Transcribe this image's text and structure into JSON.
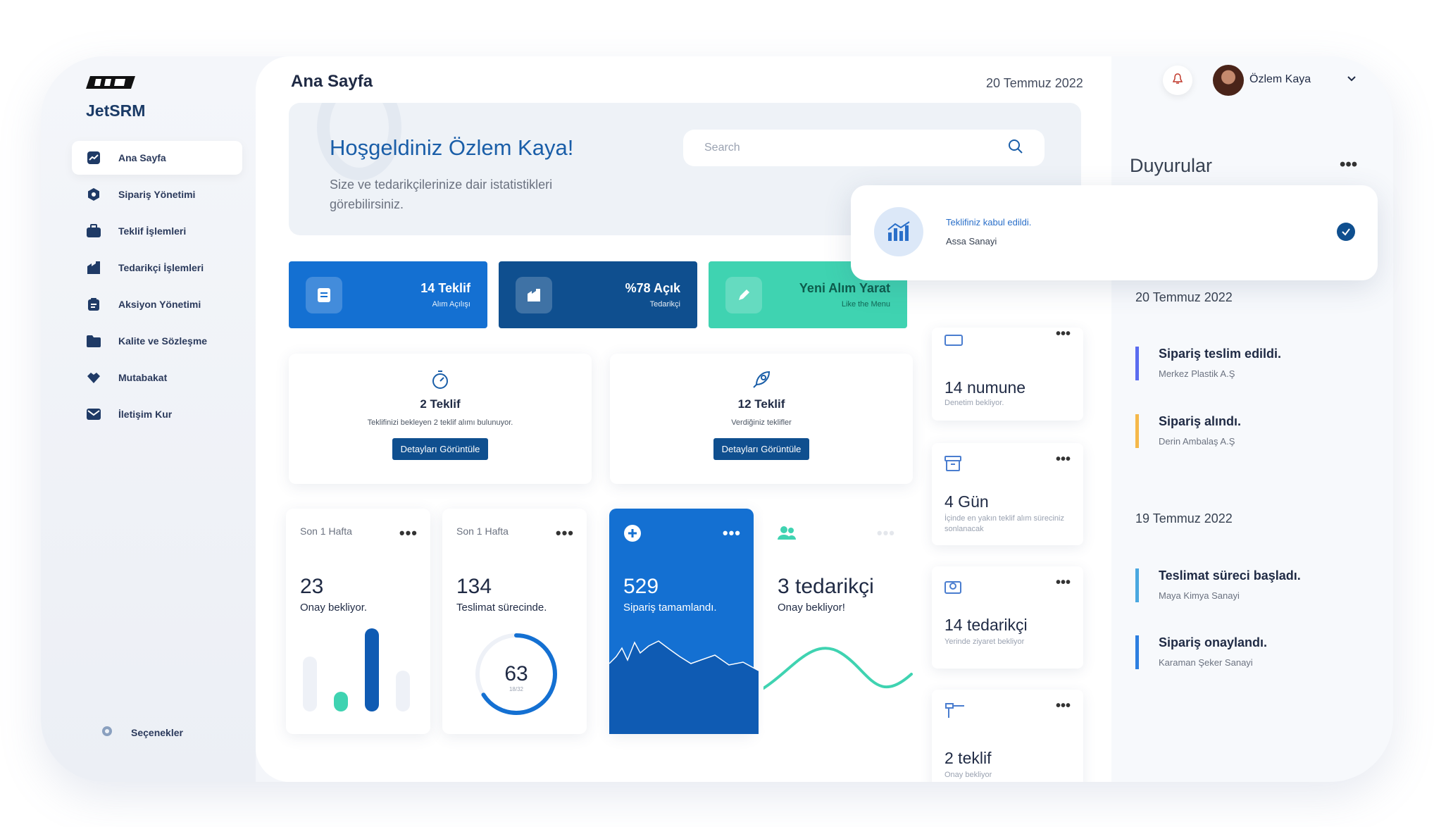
{
  "app": {
    "name": "JetSRM"
  },
  "sidebar": {
    "items": [
      {
        "label": "Ana Sayfa"
      },
      {
        "label": "Sipariş Yönetimi"
      },
      {
        "label": "Teklif İşlemleri"
      },
      {
        "label": "Tedarikçi İşlemleri"
      },
      {
        "label": "Aksiyon Yönetimi"
      },
      {
        "label": "Kalite ve Sözleşme"
      },
      {
        "label": "Mutabakat"
      },
      {
        "label": "İletişim Kur"
      }
    ],
    "settings": "Seçenekler"
  },
  "header": {
    "title": "Ana Sayfa",
    "date": "20 Temmuz 2022"
  },
  "hero": {
    "title": "Hoşgeldiniz Özlem Kaya!",
    "subtitle": "Size ve tedarikçilerinize dair istatistikleri görebilirsiniz.",
    "search_placeholder": "Search"
  },
  "stat_buttons": [
    {
      "title": "14 Teklif",
      "sub": "Alım Açılışı",
      "color": "#1470d2"
    },
    {
      "title": "%78 Açık",
      "sub": "Tedarikçi",
      "color": "#0f4f8f"
    },
    {
      "title": "Yeni Alım Yarat",
      "sub": "Like the Menu",
      "color": "#3fd3b1"
    }
  ],
  "teklif_cards": [
    {
      "title": "2 Teklif",
      "sub": "Teklifinizi bekleyen 2 teklif alımı bulunuyor.",
      "button": "Detayları Görüntüle",
      "icon": "stopwatch-icon"
    },
    {
      "title": "12 Teklif",
      "sub": "Verdiğiniz teklifler",
      "button": "Detayları Görüntüle",
      "icon": "rocket-icon"
    }
  ],
  "mini_cards": [
    {
      "label": "Son 1 Hafta",
      "value": "23",
      "caption": "Onay bekliyor."
    },
    {
      "label": "Son 1 Hafta",
      "value": "134",
      "caption": "Teslimat sürecinde.",
      "ring_value": "63",
      "ring_sub": "18/32"
    },
    {
      "value": "529",
      "caption": "Sipariş tamamlandı."
    },
    {
      "value": "3 tedarikçi",
      "caption": "Onay bekliyor!"
    }
  ],
  "side_cards": [
    {
      "value": "14 numune",
      "sub": "Denetim bekliyor."
    },
    {
      "value": "4 Gün",
      "sub": "İçinde en yakın teklif alım süreciniz sonlanacak"
    },
    {
      "value": "14 tedarikçi",
      "sub": "Yerinde ziyaret bekliyor"
    },
    {
      "value": "2 teklif",
      "sub": "Onay bekliyor"
    }
  ],
  "user": {
    "name": "Özlem Kaya"
  },
  "announcements": {
    "title": "Duyurular",
    "toast": {
      "title": "Teklifiniz kabul edildi.",
      "sub": "Assa Sanayi"
    },
    "groups": [
      {
        "date": "20 Temmuz 2022",
        "events": [
          {
            "title": "Sipariş teslim edildi.",
            "sub": "Merkez Plastik A.Ş",
            "color": "#5b6cf0"
          },
          {
            "title": "Sipariş alındı.",
            "sub": "Derin Ambalaş A.Ş",
            "color": "#f5b84a"
          }
        ]
      },
      {
        "date": "19 Temmuz 2022",
        "events": [
          {
            "title": "Teslimat süreci başladı.",
            "sub": "Maya Kimya Sanayi",
            "color": "#4aa8e0"
          },
          {
            "title": "Sipariş onaylandı.",
            "sub": "Karaman Şeker Sanayi",
            "color": "#2d7fe0"
          }
        ]
      }
    ]
  }
}
